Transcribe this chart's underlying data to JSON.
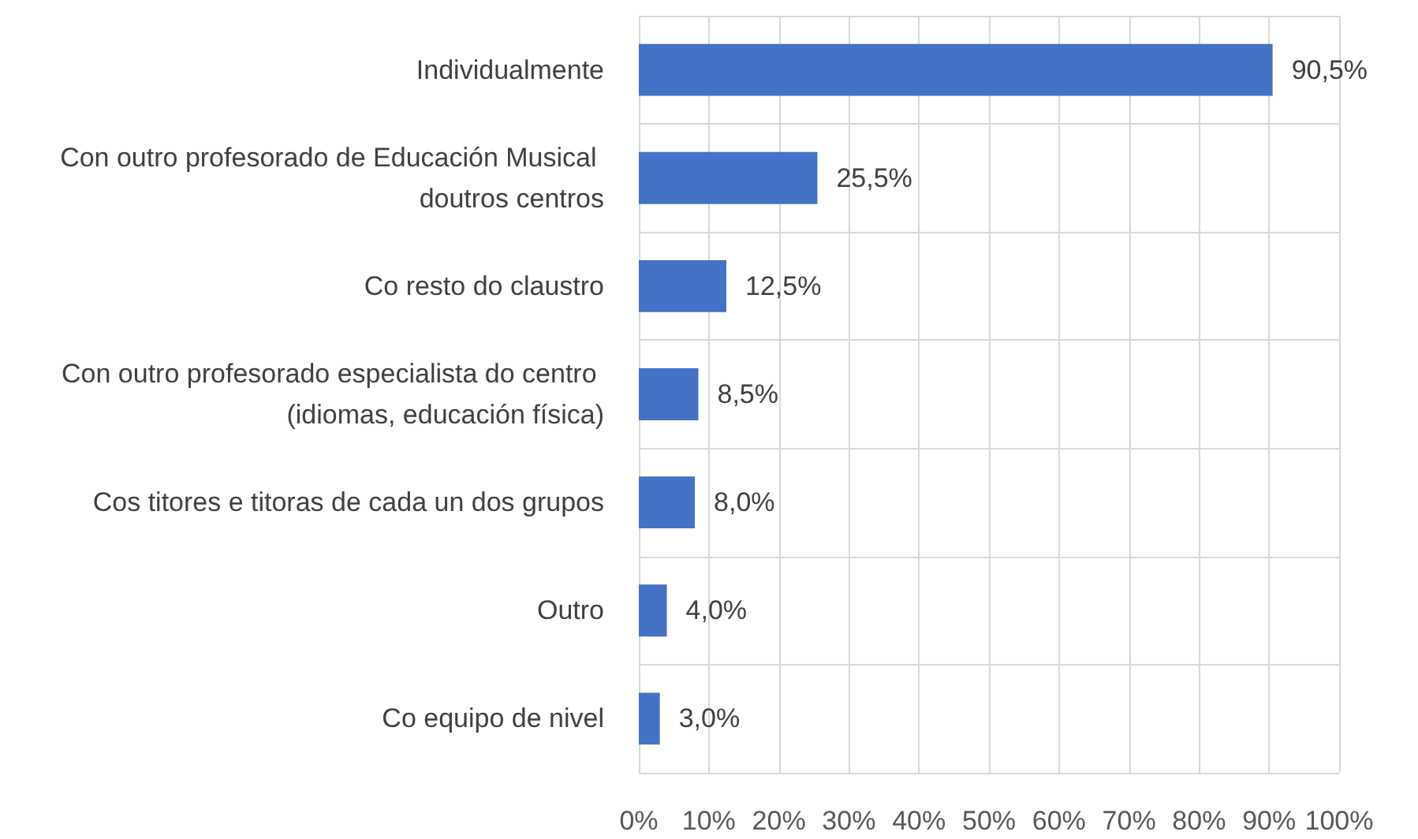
{
  "chart_data": {
    "type": "bar",
    "orientation": "horizontal",
    "categories": [
      "Individualmente",
      "Con outro profesorado de Educación Musical doutros centros",
      "Co resto do claustro",
      "Con outro profesorado especialista do centro (idiomas, educación física)",
      "Cos titores e titoras de cada un dos grupos",
      "Outro",
      "Co equipo de nivel"
    ],
    "values": [
      90.5,
      25.5,
      12.5,
      8.5,
      8.0,
      4.0,
      3.0
    ],
    "value_labels": [
      "90,5%",
      "25,5%",
      "12,5%",
      "8,5%",
      "8,0%",
      "4,0%",
      "3,0%"
    ],
    "color": "#4472c4",
    "xlim": [
      0,
      100
    ],
    "xticks": [
      {
        "value": 0,
        "label": "0%"
      },
      {
        "value": 10,
        "label": "10%"
      },
      {
        "value": 20,
        "label": "20%"
      },
      {
        "value": 30,
        "label": "30%"
      },
      {
        "value": 40,
        "label": "40%"
      },
      {
        "value": 50,
        "label": "50%"
      },
      {
        "value": 60,
        "label": "60%"
      },
      {
        "value": 70,
        "label": "70%"
      },
      {
        "value": 80,
        "label": "80%"
      },
      {
        "value": 90,
        "label": "90%"
      },
      {
        "value": 100,
        "label": "100%"
      }
    ],
    "grid": true
  }
}
